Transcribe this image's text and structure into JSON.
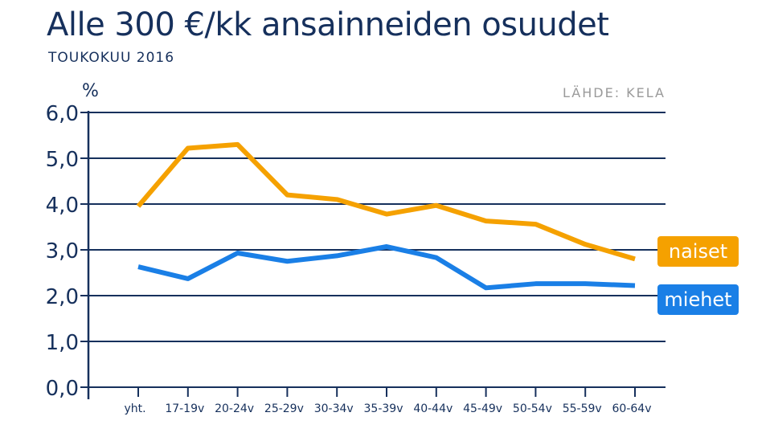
{
  "title": "Alle 300 €/kk ansainneiden osuudet",
  "subtitle": "TOUKOKUU 2016",
  "source": "LÄHDE: KELA",
  "colors": {
    "naiset": "#f5a100",
    "miehet": "#1a7fe6",
    "axis": "#16305c",
    "grid": "#16305c"
  },
  "chart_data": {
    "type": "line",
    "categories": [
      "yht.",
      "17-19v",
      "20-24v",
      "25-29v",
      "30-34v",
      "35-39v",
      "40-44v",
      "45-49v",
      "50-54v",
      "55-59v",
      "60-64v"
    ],
    "series": [
      {
        "name": "naiset",
        "values": [
          3.95,
          5.22,
          5.3,
          4.2,
          4.1,
          3.78,
          3.97,
          3.63,
          3.56,
          3.12,
          2.8
        ]
      },
      {
        "name": "miehet",
        "values": [
          2.63,
          2.37,
          2.93,
          2.75,
          2.87,
          3.07,
          2.83,
          2.17,
          2.26,
          2.26,
          2.22
        ]
      }
    ],
    "ylabel": "%",
    "yticks": [
      "0,0",
      "1,0",
      "2,0",
      "3,0",
      "4,0",
      "5,0",
      "6,0"
    ],
    "ylim": [
      0,
      6
    ],
    "grid": true,
    "legend_placement": "right"
  }
}
